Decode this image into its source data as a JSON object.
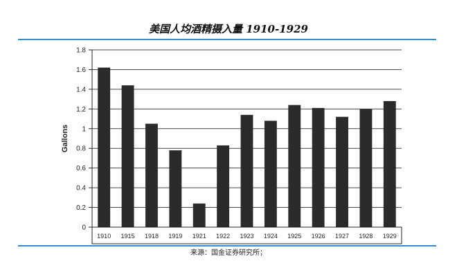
{
  "figure": {
    "title": "美国人均酒精摄入量 1910-1929",
    "source": "来源：国金证券研究所；"
  },
  "colors": {
    "bar": "#2b2b2b",
    "rule": "#2f8fd6",
    "grid": "#444444",
    "axis": "#222222"
  },
  "chart_data": {
    "type": "bar",
    "title": "",
    "xlabel": "",
    "ylabel": "Gallons",
    "categories": [
      "1910",
      "1915",
      "1918",
      "1919",
      "1921",
      "1922",
      "1923",
      "1924",
      "1925",
      "1926",
      "1927",
      "1928",
      "1929"
    ],
    "values": [
      1.62,
      1.44,
      1.05,
      0.78,
      0.24,
      0.83,
      1.14,
      1.08,
      1.24,
      1.21,
      1.12,
      1.2,
      1.28
    ],
    "ylim": [
      0,
      1.8
    ],
    "yticks": [
      "0",
      "0.2",
      "0.4",
      "0.6",
      "0.8",
      "1",
      "1.2",
      "1.4",
      "1.6",
      "1.8"
    ],
    "grid": true,
    "legend": "none"
  }
}
